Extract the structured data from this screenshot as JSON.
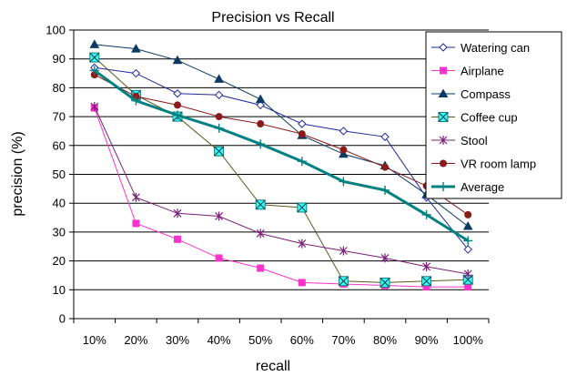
{
  "chart_data": {
    "type": "line",
    "title": "Precision vs Recall",
    "xlabel": "recall",
    "ylabel": "precision (%)",
    "categories": [
      "10%",
      "20%",
      "30%",
      "40%",
      "50%",
      "60%",
      "70%",
      "80%",
      "90%",
      "100%"
    ],
    "ylim": [
      0,
      100
    ],
    "yticks": [
      0,
      10,
      20,
      30,
      40,
      50,
      60,
      70,
      80,
      90,
      100
    ],
    "grid": "horizontal",
    "legend_position": "right",
    "series": [
      {
        "name": "Watering can",
        "color": "#1f2a9c",
        "marker": "diamond-open",
        "values": [
          87,
          85,
          78,
          77.5,
          74,
          67.5,
          65,
          63,
          42,
          24
        ]
      },
      {
        "name": "Airplane",
        "color": "#ff33cc",
        "marker": "square",
        "values": [
          73,
          33,
          27.5,
          21,
          17.5,
          12.5,
          12,
          11.5,
          11,
          11
        ]
      },
      {
        "name": "Compass",
        "color": "#0b3a63",
        "marker": "triangle",
        "values": [
          95,
          93.5,
          89.5,
          83,
          76,
          63.5,
          57,
          53,
          43,
          32
        ]
      },
      {
        "name": "Coffee cup",
        "color": "#5a5a1e",
        "marker": "box-x",
        "values": [
          90.5,
          77.5,
          70,
          58,
          39.5,
          38.5,
          13,
          12.5,
          13,
          13.5
        ]
      },
      {
        "name": "Stool",
        "color": "#7b1f78",
        "marker": "star",
        "values": [
          73.5,
          42,
          36.5,
          35.5,
          29.5,
          26,
          23.5,
          21,
          18,
          15.5
        ]
      },
      {
        "name": "VR room lamp",
        "color": "#8b1a1a",
        "marker": "circle",
        "values": [
          84.5,
          77,
          74,
          70,
          67.5,
          64,
          58.5,
          52.5,
          46,
          36
        ]
      },
      {
        "name": "Average",
        "color": "#008080",
        "marker": "plus",
        "thick": true,
        "values": [
          86,
          75.5,
          70.5,
          66,
          60.5,
          54.5,
          47.5,
          44.5,
          36,
          27
        ]
      }
    ]
  }
}
